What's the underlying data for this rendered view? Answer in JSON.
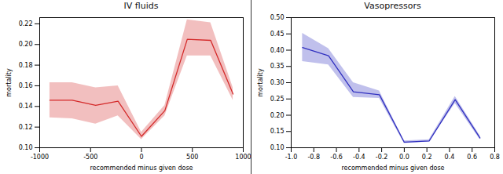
{
  "chart_data": [
    {
      "type": "line",
      "title": "IV fluids",
      "color": "#d42a2a",
      "marker": "none",
      "grid": false,
      "x_label": "recommended minus given dose",
      "y_label": "mortality",
      "x": [
        -900,
        -680,
        -450,
        -230,
        0,
        230,
        450,
        680,
        900
      ],
      "values": [
        0.146,
        0.146,
        0.141,
        0.145,
        0.111,
        0.136,
        0.205,
        0.204,
        0.152
      ],
      "lower": [
        0.129,
        0.128,
        0.123,
        0.131,
        0.108,
        0.131,
        0.189,
        0.189,
        0.146
      ],
      "upper": [
        0.163,
        0.163,
        0.158,
        0.16,
        0.115,
        0.141,
        0.224,
        0.221,
        0.158
      ],
      "xlim": [
        -1000,
        1000
      ],
      "xticks": [
        -1000,
        -500,
        0,
        500,
        1000
      ],
      "ylim": [
        0.1,
        0.226
      ],
      "yticks": [
        {
          "value": 0.1,
          "label": "0.10"
        },
        0.12,
        0.14,
        0.16,
        0.18,
        {
          "value": 0.2,
          "label": "0.20"
        },
        0.22
      ]
    },
    {
      "type": "line",
      "title": "Vasopressors",
      "color": "#3030c0",
      "marker": "none",
      "grid": false,
      "x_label": "recommended minus given dose",
      "y_label": "mortality",
      "x": [
        -0.9,
        -0.67,
        -0.45,
        -0.22,
        0,
        0.22,
        0.45,
        0.67
      ],
      "values": [
        0.408,
        0.383,
        0.272,
        0.263,
        0.117,
        0.121,
        0.248,
        0.13
      ],
      "lower": [
        0.365,
        0.355,
        0.255,
        0.252,
        0.113,
        0.118,
        0.236,
        0.125
      ],
      "upper": [
        0.452,
        0.405,
        0.3,
        0.275,
        0.121,
        0.125,
        0.258,
        0.137
      ],
      "xlim": [
        -1.0,
        0.8
      ],
      "xticks": [
        {
          "value": -1,
          "label": "-1.0"
        },
        -0.8,
        -0.6,
        -0.4,
        -0.2,
        {
          "value": 0,
          "label": "0.0"
        },
        0.2,
        0.4,
        0.6,
        0.8
      ],
      "ylim": [
        0.1,
        0.5
      ],
      "yticks": [
        {
          "value": 0.1,
          "label": "0.10"
        },
        0.15,
        {
          "value": 0.2,
          "label": "0.20"
        },
        0.25,
        {
          "value": 0.3,
          "label": "0.30"
        },
        0.35,
        {
          "value": 0.4,
          "label": "0.40"
        },
        0.45,
        {
          "value": 0.5,
          "label": "0.50"
        }
      ]
    }
  ]
}
